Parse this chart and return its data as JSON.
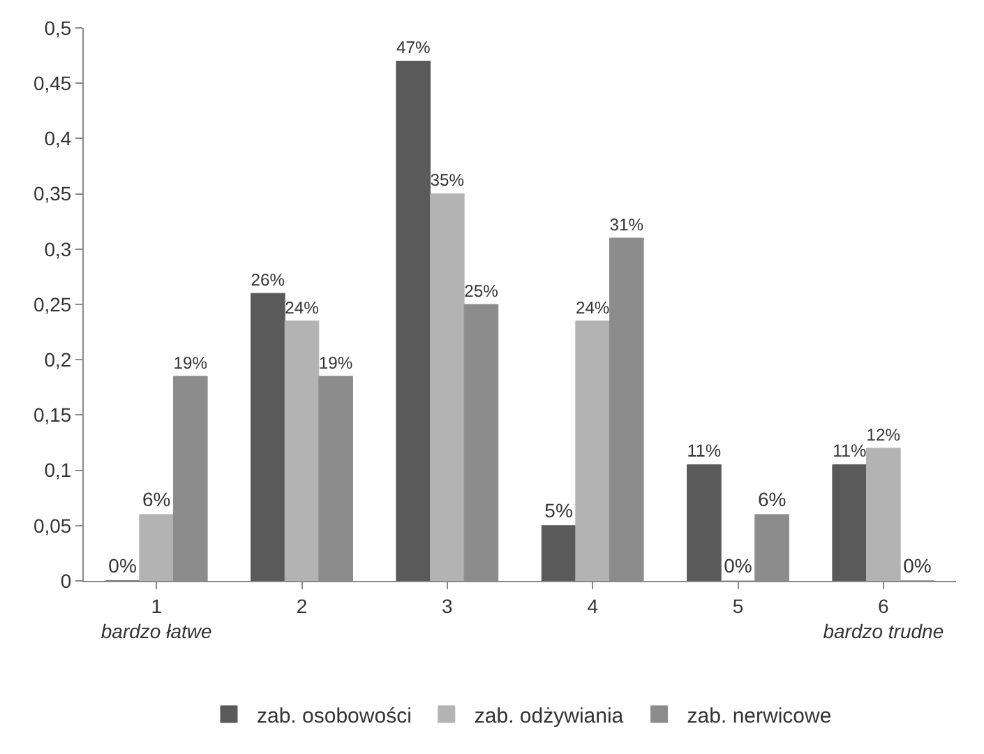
{
  "chart_data": {
    "type": "bar",
    "categories": [
      "1\nbardzo łatwe",
      "2",
      "3",
      "4",
      "5",
      "6\nbardzo trudne"
    ],
    "series": [
      {
        "name": "zab. osobowości",
        "color": "#5a5a5a",
        "values": [
          0,
          0.26,
          0.47,
          0.05,
          0.105,
          0.105
        ],
        "value_labels": [
          "0%",
          "26%",
          "47%",
          "5%",
          "11%",
          "11%"
        ]
      },
      {
        "name": "zab. odżywiania",
        "color": "#b3b3b3",
        "values": [
          0.06,
          0.235,
          0.35,
          0.235,
          0,
          0.12
        ],
        "value_labels": [
          "6%",
          "24%",
          "35%",
          "24%",
          "0%",
          "12%"
        ]
      },
      {
        "name": "zab. nerwicowe",
        "color": "#8c8c8c",
        "values": [
          0.185,
          0.185,
          0.25,
          0.31,
          0.06,
          0
        ],
        "value_labels": [
          "19%",
          "19%",
          "25%",
          "31%",
          "6%",
          "0%"
        ]
      }
    ],
    "ylim": [
      0,
      0.5
    ],
    "yticks": [
      {
        "value": 0,
        "label": "0"
      },
      {
        "value": 0.05,
        "label": "0,05"
      },
      {
        "value": 0.1,
        "label": "0,1"
      },
      {
        "value": 0.15,
        "label": "0,15"
      },
      {
        "value": 0.2,
        "label": "0,2"
      },
      {
        "value": 0.25,
        "label": "0,25"
      },
      {
        "value": 0.3,
        "label": "0,3"
      },
      {
        "value": 0.35,
        "label": "0,35"
      },
      {
        "value": 0.4,
        "label": "0,4"
      },
      {
        "value": 0.45,
        "label": "0,45"
      },
      {
        "value": 0.5,
        "label": "0,5"
      }
    ],
    "grid": false,
    "legend": "bottom"
  }
}
